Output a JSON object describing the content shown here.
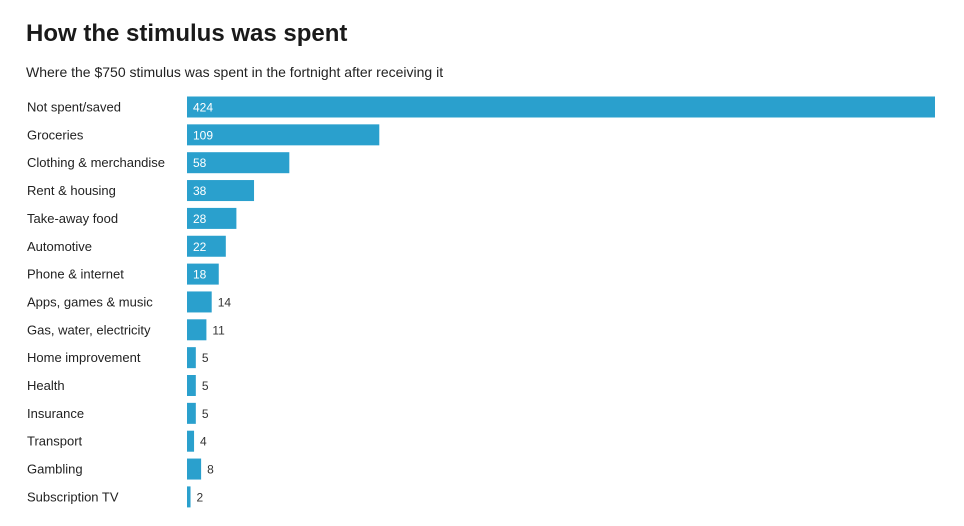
{
  "colors": {
    "bar": "#2aa0cd",
    "label_inside": "#ffffff",
    "label_outside": "#333333",
    "text": "#222222"
  },
  "chart_data": {
    "type": "bar",
    "orientation": "horizontal",
    "title": "How the stimulus was spent",
    "subtitle": "Where the $750 stimulus was spent in the fortnight after receiving it",
    "categories": [
      "Not spent/saved",
      "Groceries",
      "Clothing & merchandise",
      "Rent & housing",
      "Take-away food",
      "Automotive",
      "Phone & internet",
      "Apps, games & music",
      "Gas, water, electricity",
      "Home improvement",
      "Health",
      "Insurance",
      "Transport",
      "Gambling",
      "Subscription TV"
    ],
    "values": [
      424,
      109,
      58,
      38,
      28,
      22,
      18,
      14,
      11,
      5,
      5,
      5,
      4,
      8,
      2
    ],
    "xlim": [
      0,
      424
    ],
    "grid": false,
    "legend": "none"
  }
}
